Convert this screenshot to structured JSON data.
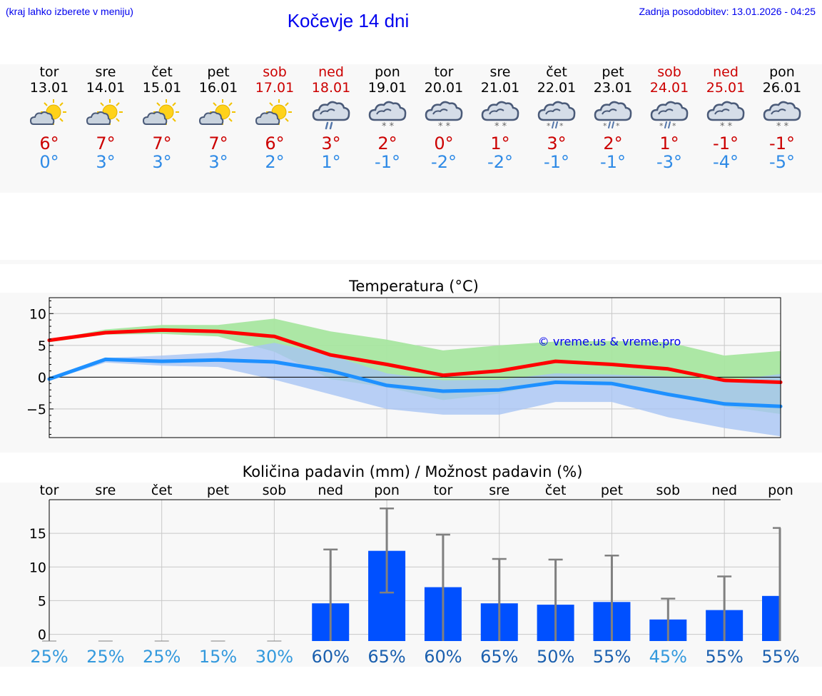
{
  "header": {
    "hint": "(kraj lahko izberete v meniju)",
    "title": "Kočevje 14 dni",
    "updated": "Zadnja posodobitev: 13.01.2026 - 04:25"
  },
  "days": [
    {
      "name": "tor",
      "date": "13.01",
      "weekend": false,
      "icon": "partly-sunny-icon",
      "tmax": "6°",
      "tmin": "0°"
    },
    {
      "name": "sre",
      "date": "14.01",
      "weekend": false,
      "icon": "partly-sunny-icon",
      "tmax": "7°",
      "tmin": "3°"
    },
    {
      "name": "čet",
      "date": "15.01",
      "weekend": false,
      "icon": "partly-sunny-icon",
      "tmax": "7°",
      "tmin": "3°"
    },
    {
      "name": "pet",
      "date": "16.01",
      "weekend": false,
      "icon": "partly-sunny-icon",
      "tmax": "7°",
      "tmin": "3°"
    },
    {
      "name": "sob",
      "date": "17.01",
      "weekend": true,
      "icon": "partly-sunny-icon",
      "tmax": "6°",
      "tmin": "2°"
    },
    {
      "name": "ned",
      "date": "18.01",
      "weekend": true,
      "icon": "rain-cloud-icon",
      "tmax": "3°",
      "tmin": "1°"
    },
    {
      "name": "pon",
      "date": "19.01",
      "weekend": false,
      "icon": "snow-cloud-icon",
      "tmax": "2°",
      "tmin": "-1°"
    },
    {
      "name": "tor",
      "date": "20.01",
      "weekend": false,
      "icon": "snow-cloud-icon",
      "tmax": "0°",
      "tmin": "-2°"
    },
    {
      "name": "sre",
      "date": "21.01",
      "weekend": false,
      "icon": "snow-cloud-icon",
      "tmax": "1°",
      "tmin": "-2°"
    },
    {
      "name": "čet",
      "date": "22.01",
      "weekend": false,
      "icon": "sleet-cloud-icon",
      "tmax": "3°",
      "tmin": "-1°"
    },
    {
      "name": "pet",
      "date": "23.01",
      "weekend": false,
      "icon": "sleet-cloud-icon",
      "tmax": "2°",
      "tmin": "-1°"
    },
    {
      "name": "sob",
      "date": "24.01",
      "weekend": true,
      "icon": "sleet-cloud-icon",
      "tmax": "1°",
      "tmin": "-3°"
    },
    {
      "name": "ned",
      "date": "25.01",
      "weekend": true,
      "icon": "snow-cloud-icon",
      "tmax": "-1°",
      "tmin": "-4°"
    },
    {
      "name": "pon",
      "date": "26.01",
      "weekend": false,
      "icon": "snow-cloud-icon",
      "tmax": "-1°",
      "tmin": "-5°"
    }
  ],
  "colors": {
    "weekday": "#000000",
    "weekend": "#cc0000",
    "tmax": "#cc0000",
    "tmin": "#2e8ae6",
    "maxLine": "#ff0000",
    "minLine": "#1e90ff",
    "maxBand": "#a8e6a0",
    "minBand": "#a8c4f4",
    "bar": "#0050ff",
    "errorBar": "#808080",
    "probLow": "#3399dd",
    "probHigh": "#1a5fae"
  },
  "chart_data": [
    {
      "type": "line",
      "title": "Temperatura (°C)",
      "watermark": "© vreme.us & vreme.pro",
      "x": [
        0,
        1,
        2,
        3,
        4,
        5,
        6,
        7,
        8,
        9,
        10,
        11,
        12,
        13
      ],
      "ylim": [
        -9.5,
        12.5
      ],
      "yticks": [
        10,
        5,
        0,
        -5
      ],
      "ytick_labels": [
        "10",
        "5",
        "0",
        "−5"
      ],
      "series": [
        {
          "name": "max",
          "values": [
            5.8,
            7.0,
            7.4,
            7.2,
            6.4,
            3.5,
            2.0,
            0.3,
            1.0,
            2.5,
            2.0,
            1.3,
            -0.5,
            -0.8
          ]
        },
        {
          "name": "min",
          "values": [
            -0.3,
            2.8,
            2.5,
            2.7,
            2.4,
            1.0,
            -1.3,
            -2.2,
            -2.0,
            -0.8,
            -1.0,
            -2.7,
            -4.2,
            -4.6
          ]
        }
      ],
      "bands": [
        {
          "name": "max-range",
          "upper": [
            5.9,
            7.5,
            8.2,
            8.2,
            9.2,
            7.2,
            5.9,
            4.2,
            5.0,
            5.6,
            5.7,
            5.5,
            3.4,
            4.1
          ],
          "lower": [
            5.5,
            6.7,
            6.8,
            6.4,
            4.0,
            -0.3,
            -1.6,
            -3.6,
            -2.6,
            -0.8,
            -0.9,
            -3.0,
            -4.6,
            -5.8
          ]
        },
        {
          "name": "min-range",
          "upper": [
            -0.2,
            3.0,
            3.4,
            3.9,
            5.4,
            3.5,
            0.6,
            -0.5,
            -0.4,
            0.6,
            0.4,
            0.1,
            -0.6,
            0.5
          ],
          "lower": [
            -0.5,
            2.3,
            1.8,
            1.6,
            -0.4,
            -2.7,
            -5.0,
            -5.9,
            -5.9,
            -3.9,
            -3.9,
            -6.3,
            -8.0,
            -9.3
          ]
        }
      ]
    },
    {
      "type": "bar",
      "title": "Količina padavin (mm) / Možnost padavin (%)",
      "categories": [
        "tor",
        "sre",
        "čet",
        "pet",
        "sob",
        "ned",
        "pon",
        "tor",
        "sre",
        "čet",
        "pet",
        "sob",
        "ned",
        "pon"
      ],
      "ylim": [
        -1,
        20
      ],
      "yticks": [
        15,
        10,
        5,
        0
      ],
      "ytick_labels": [
        "15",
        "10",
        "5",
        "0"
      ],
      "values": [
        0,
        0,
        0,
        0,
        0,
        4.6,
        12.4,
        7.0,
        4.6,
        4.4,
        4.8,
        2.2,
        3.6,
        5.7
      ],
      "error_low": [
        0,
        0,
        0,
        0,
        0,
        0,
        6.2,
        0,
        0,
        0,
        0,
        0,
        0,
        0
      ],
      "error_high": [
        0,
        0,
        0,
        0,
        0,
        12.6,
        18.7,
        14.8,
        11.2,
        11.1,
        11.7,
        5.3,
        8.6,
        15.8
      ],
      "probability": [
        "25%",
        "25%",
        "25%",
        "15%",
        "30%",
        "60%",
        "65%",
        "60%",
        "65%",
        "50%",
        "55%",
        "45%",
        "55%",
        "55%"
      ]
    }
  ]
}
